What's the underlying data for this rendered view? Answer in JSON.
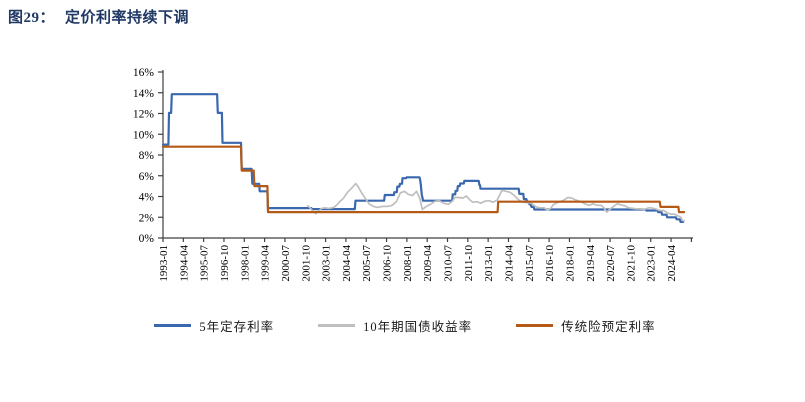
{
  "header": {
    "figure_no": "图29：",
    "title": "定价利率持续下调"
  },
  "colors": {
    "title": "#1F3864",
    "axis": "#404040",
    "tick_label": "#000000",
    "series_blue": "#3A68AE",
    "series_gray": "#BFBFBF",
    "series_orange": "#B45A16"
  },
  "chart_data": {
    "type": "line",
    "title": "图29： 定价利率持续下调",
    "xlabel": "",
    "ylabel": "",
    "grid": false,
    "legend_position": "bottom",
    "y_ticks": [
      "0%",
      "2%",
      "4%",
      "6%",
      "8%",
      "10%",
      "12%",
      "14%",
      "16%"
    ],
    "y_tick_values": [
      0,
      2,
      4,
      6,
      8,
      10,
      12,
      14,
      16
    ],
    "ylim": [
      0,
      16
    ],
    "x_tick_labels": [
      "1993-01",
      "1994-04",
      "1995-07",
      "1996-10",
      "1998-01",
      "1999-04",
      "2000-07",
      "2001-10",
      "2003-01",
      "2004-04",
      "2005-07",
      "2006-10",
      "2008-01",
      "2009-04",
      "2010-07",
      "2011-10",
      "2013-01",
      "2014-04",
      "2015-07",
      "2016-10",
      "2018-01",
      "2019-04",
      "2020-07",
      "2021-10",
      "2023-01",
      "2024-04"
    ],
    "x_tick_interval_years": 1.25,
    "xlim": [
      1993.0,
      2025.6
    ],
    "series": [
      {
        "name": "5年定存利率",
        "color": "#3A68AE",
        "width": 2.2,
        "points": [
          [
            1993.0,
            9.0
          ],
          [
            1993.33,
            9.0
          ],
          [
            1993.37,
            12.06
          ],
          [
            1993.5,
            12.06
          ],
          [
            1993.54,
            13.86
          ],
          [
            1996.33,
            13.86
          ],
          [
            1996.37,
            12.06
          ],
          [
            1996.62,
            12.06
          ],
          [
            1996.66,
            9.18
          ],
          [
            1997.8,
            9.18
          ],
          [
            1997.84,
            6.66
          ],
          [
            1998.45,
            6.66
          ],
          [
            1998.5,
            5.22
          ],
          [
            1998.92,
            5.22
          ],
          [
            1998.95,
            4.5
          ],
          [
            1999.42,
            4.5
          ],
          [
            1999.45,
            2.88
          ],
          [
            2002.12,
            2.88
          ],
          [
            2002.16,
            2.79
          ],
          [
            2004.8,
            2.79
          ],
          [
            2004.84,
            3.6
          ],
          [
            2006.6,
            3.6
          ],
          [
            2006.64,
            4.14
          ],
          [
            2007.2,
            4.14
          ],
          [
            2007.23,
            4.41
          ],
          [
            2007.38,
            4.41
          ],
          [
            2007.41,
            4.95
          ],
          [
            2007.54,
            4.95
          ],
          [
            2007.57,
            5.22
          ],
          [
            2007.7,
            5.22
          ],
          [
            2007.73,
            5.76
          ],
          [
            2007.96,
            5.76
          ],
          [
            2007.99,
            5.85
          ],
          [
            2008.78,
            5.85
          ],
          [
            2008.82,
            5.58
          ],
          [
            2008.86,
            5.13
          ],
          [
            2008.92,
            4.14
          ],
          [
            2008.96,
            3.87
          ],
          [
            2008.99,
            3.6
          ],
          [
            2010.79,
            3.6
          ],
          [
            2010.82,
            4.2
          ],
          [
            2010.97,
            4.2
          ],
          [
            2011.0,
            4.55
          ],
          [
            2011.1,
            4.55
          ],
          [
            2011.13,
            5.0
          ],
          [
            2011.25,
            5.0
          ],
          [
            2011.28,
            5.25
          ],
          [
            2011.5,
            5.25
          ],
          [
            2011.53,
            5.5
          ],
          [
            2012.42,
            5.5
          ],
          [
            2012.46,
            5.1
          ],
          [
            2012.5,
            5.1
          ],
          [
            2012.53,
            4.75
          ],
          [
            2014.88,
            4.75
          ],
          [
            2014.92,
            4.25
          ],
          [
            2015.16,
            4.25
          ],
          [
            2015.2,
            3.75
          ],
          [
            2015.35,
            3.75
          ],
          [
            2015.39,
            3.5
          ],
          [
            2015.5,
            3.5
          ],
          [
            2015.54,
            3.25
          ],
          [
            2015.62,
            3.25
          ],
          [
            2015.66,
            3.0
          ],
          [
            2015.8,
            3.0
          ],
          [
            2015.84,
            2.75
          ],
          [
            2022.7,
            2.75
          ],
          [
            2022.74,
            2.65
          ],
          [
            2023.42,
            2.65
          ],
          [
            2023.46,
            2.5
          ],
          [
            2023.66,
            2.5
          ],
          [
            2023.7,
            2.25
          ],
          [
            2023.97,
            2.25
          ],
          [
            2024.01,
            2.0
          ],
          [
            2024.55,
            2.0
          ],
          [
            2024.59,
            1.8
          ],
          [
            2024.79,
            1.8
          ],
          [
            2024.83,
            1.55
          ],
          [
            2025.0,
            1.55
          ]
        ]
      },
      {
        "name": "10年期国债收益率",
        "color": "#BFBFBF",
        "width": 1.7,
        "points": [
          [
            2001.9,
            3.1
          ],
          [
            2002.05,
            2.9
          ],
          [
            2002.2,
            2.6
          ],
          [
            2002.4,
            2.35
          ],
          [
            2002.55,
            2.55
          ],
          [
            2002.75,
            2.85
          ],
          [
            2002.95,
            2.9
          ],
          [
            2003.2,
            2.85
          ],
          [
            2003.5,
            2.95
          ],
          [
            2003.7,
            3.2
          ],
          [
            2003.9,
            3.55
          ],
          [
            2004.1,
            3.85
          ],
          [
            2004.35,
            4.4
          ],
          [
            2004.6,
            4.8
          ],
          [
            2004.85,
            5.25
          ],
          [
            2005.0,
            4.95
          ],
          [
            2005.2,
            4.4
          ],
          [
            2005.45,
            3.8
          ],
          [
            2005.7,
            3.25
          ],
          [
            2005.95,
            3.05
          ],
          [
            2006.2,
            2.95
          ],
          [
            2006.5,
            3.05
          ],
          [
            2006.8,
            3.05
          ],
          [
            2007.1,
            3.15
          ],
          [
            2007.35,
            3.5
          ],
          [
            2007.6,
            4.35
          ],
          [
            2007.85,
            4.5
          ],
          [
            2008.1,
            4.2
          ],
          [
            2008.35,
            4.1
          ],
          [
            2008.6,
            4.5
          ],
          [
            2008.8,
            3.8
          ],
          [
            2008.95,
            2.75
          ],
          [
            2009.15,
            3.0
          ],
          [
            2009.45,
            3.25
          ],
          [
            2009.75,
            3.55
          ],
          [
            2010.0,
            3.6
          ],
          [
            2010.25,
            3.35
          ],
          [
            2010.55,
            3.25
          ],
          [
            2010.8,
            3.55
          ],
          [
            2010.95,
            3.9
          ],
          [
            2011.2,
            3.9
          ],
          [
            2011.45,
            3.85
          ],
          [
            2011.65,
            4.05
          ],
          [
            2011.85,
            3.7
          ],
          [
            2012.05,
            3.45
          ],
          [
            2012.3,
            3.5
          ],
          [
            2012.55,
            3.35
          ],
          [
            2012.8,
            3.55
          ],
          [
            2013.05,
            3.6
          ],
          [
            2013.3,
            3.45
          ],
          [
            2013.55,
            3.65
          ],
          [
            2013.85,
            4.6
          ],
          [
            2014.1,
            4.5
          ],
          [
            2014.35,
            4.4
          ],
          [
            2014.6,
            4.1
          ],
          [
            2014.9,
            3.65
          ],
          [
            2015.15,
            3.45
          ],
          [
            2015.4,
            3.4
          ],
          [
            2015.65,
            3.35
          ],
          [
            2015.95,
            3.0
          ],
          [
            2016.2,
            2.9
          ],
          [
            2016.45,
            2.9
          ],
          [
            2016.65,
            2.7
          ],
          [
            2016.85,
            2.85
          ],
          [
            2017.0,
            3.2
          ],
          [
            2017.3,
            3.45
          ],
          [
            2017.6,
            3.6
          ],
          [
            2017.9,
            3.9
          ],
          [
            2018.15,
            3.85
          ],
          [
            2018.4,
            3.65
          ],
          [
            2018.7,
            3.5
          ],
          [
            2018.95,
            3.3
          ],
          [
            2019.2,
            3.15
          ],
          [
            2019.45,
            3.3
          ],
          [
            2019.7,
            3.15
          ],
          [
            2019.95,
            3.15
          ],
          [
            2020.1,
            2.95
          ],
          [
            2020.3,
            2.5
          ],
          [
            2020.55,
            2.85
          ],
          [
            2020.8,
            3.15
          ],
          [
            2020.95,
            3.3
          ],
          [
            2021.15,
            3.2
          ],
          [
            2021.4,
            3.1
          ],
          [
            2021.65,
            2.9
          ],
          [
            2021.9,
            2.85
          ],
          [
            2022.1,
            2.8
          ],
          [
            2022.35,
            2.8
          ],
          [
            2022.6,
            2.75
          ],
          [
            2022.85,
            2.9
          ],
          [
            2023.05,
            2.9
          ],
          [
            2023.3,
            2.8
          ],
          [
            2023.55,
            2.65
          ],
          [
            2023.8,
            2.65
          ],
          [
            2024.0,
            2.45
          ],
          [
            2024.2,
            2.3
          ],
          [
            2024.45,
            2.3
          ],
          [
            2024.65,
            2.15
          ],
          [
            2024.85,
            2.0
          ],
          [
            2024.95,
            1.7
          ],
          [
            2025.05,
            1.65
          ]
        ]
      },
      {
        "name": "传统险预定利率",
        "color": "#B45A16",
        "width": 2.2,
        "points": [
          [
            1993.0,
            8.8
          ],
          [
            1997.8,
            8.8
          ],
          [
            1997.84,
            6.5
          ],
          [
            1998.58,
            6.5
          ],
          [
            1998.62,
            5.0
          ],
          [
            1999.42,
            5.0
          ],
          [
            1999.46,
            2.5
          ],
          [
            2013.58,
            2.5
          ],
          [
            2013.62,
            3.5
          ],
          [
            2023.56,
            3.5
          ],
          [
            2023.6,
            3.0
          ],
          [
            2024.7,
            3.0
          ],
          [
            2024.74,
            2.5
          ],
          [
            2025.05,
            2.5
          ]
        ]
      }
    ]
  }
}
